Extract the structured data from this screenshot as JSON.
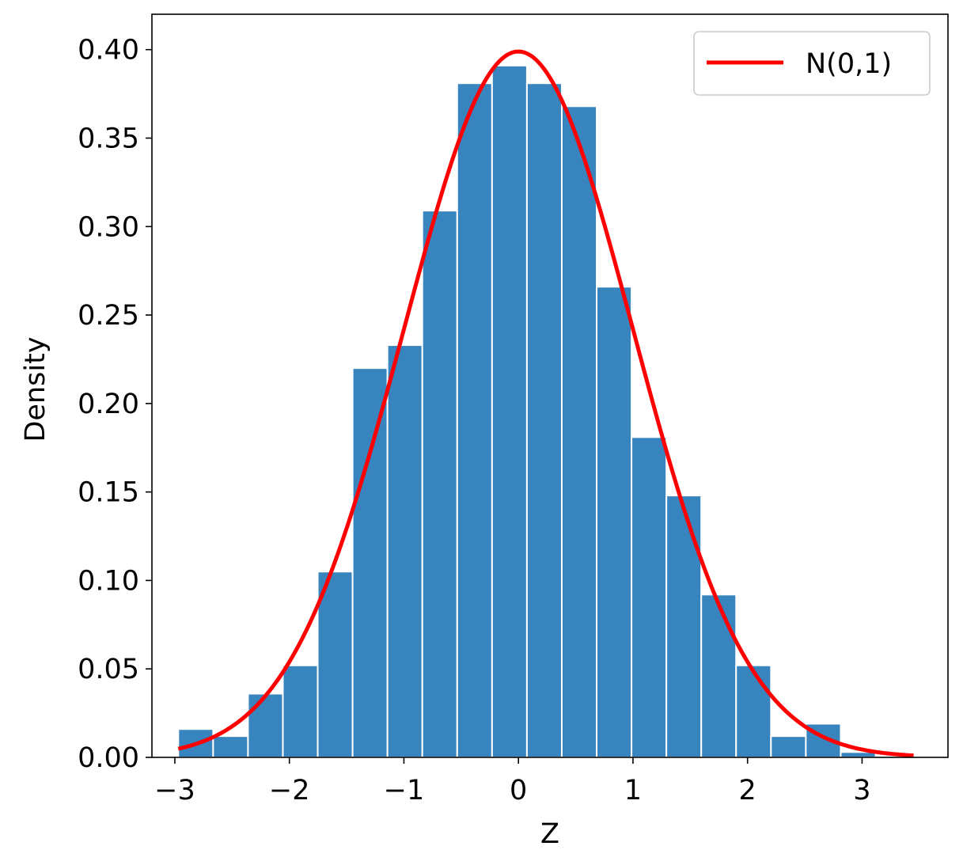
{
  "chart_data": {
    "type": "bar",
    "xlabel": "Z",
    "ylabel": "Density",
    "xlim": [
      -3.2,
      3.75
    ],
    "ylim": [
      0,
      0.42
    ],
    "xticks": [
      -3,
      -2,
      -1,
      0,
      1,
      2,
      3
    ],
    "xtick_labels": [
      "−3",
      "−2",
      "−1",
      "0",
      "1",
      "2",
      "3"
    ],
    "yticks": [
      0,
      0.05,
      0.1,
      0.15,
      0.2,
      0.25,
      0.3,
      0.35,
      0.4
    ],
    "ytick_labels": [
      "0.00",
      "0.05",
      "0.10",
      "0.15",
      "0.20",
      "0.25",
      "0.30",
      "0.35",
      "0.40"
    ],
    "grid": false,
    "histogram": {
      "bin_start": -2.97,
      "bin_width": 0.3044,
      "densities": [
        0.016,
        0.012,
        0.036,
        0.052,
        0.105,
        0.22,
        0.233,
        0.309,
        0.381,
        0.391,
        0.381,
        0.368,
        0.266,
        0.181,
        0.148,
        0.092,
        0.052,
        0.012,
        0.019,
        0.003
      ],
      "color": "#3784be",
      "edge_color": "#ffffff"
    },
    "curve": {
      "name": "N(0,1)",
      "mean": 0,
      "sd": 1,
      "x_range": [
        -2.97,
        3.45
      ],
      "color": "#ff0000"
    },
    "legend": {
      "position": "top-right",
      "entries": [
        "N(0,1)"
      ]
    }
  }
}
